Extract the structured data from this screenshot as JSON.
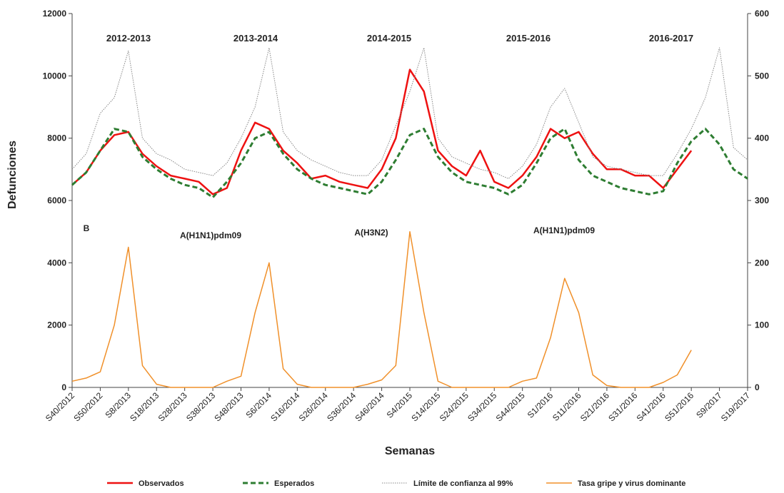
{
  "chart_data": {
    "type": "line",
    "y_label": "Defunciones",
    "x_label": "Semanas",
    "categories": [
      "S40/2012",
      null,
      "S50/2012",
      null,
      "S8/2013",
      null,
      "S18/2013",
      null,
      "S28/2013",
      null,
      "S38/2013",
      null,
      "S48/2013",
      null,
      "S6/2014",
      null,
      "S16/2014",
      null,
      "S26/2014",
      null,
      "S36/2014",
      null,
      "S46/2014",
      null,
      "S4/2015",
      null,
      "S14/2015",
      null,
      "S24/2015",
      null,
      "S34/2015",
      null,
      "S44/2015",
      null,
      "S1/2016",
      null,
      "S11/2016",
      null,
      "S21/2016",
      null,
      "S31/2016",
      null,
      "S41/2016",
      null,
      "S51/2016",
      null,
      "S9/2017",
      null,
      "S19/2017"
    ],
    "ylim": [
      0,
      12000
    ],
    "yticks": [
      0,
      2000,
      4000,
      6000,
      8000,
      10000,
      12000
    ],
    "y2lim": [
      0,
      600
    ],
    "y2ticks": [
      0,
      100,
      200,
      300,
      400,
      500,
      600
    ],
    "season_labels": [
      "2012-2013",
      "2013-2014",
      "2014-2015",
      "2015-2016",
      "2016-2017"
    ],
    "virus_labels": [
      "B",
      "A(H1N1)pdm09",
      "A(H3N2)",
      "A(H1N1)pdm09"
    ],
    "series": [
      {
        "name": "Observados",
        "color": "#ee1111",
        "style": "solid",
        "width": 2.5,
        "values": [
          6500,
          6900,
          7600,
          8100,
          8200,
          7500,
          7100,
          6800,
          6700,
          6600,
          6200,
          6400,
          7600,
          8500,
          8300,
          7600,
          7200,
          6700,
          6800,
          6600,
          6500,
          6400,
          7000,
          8000,
          10200,
          9500,
          7600,
          7100,
          6800,
          7600,
          6600,
          6400,
          6800,
          7400,
          8300,
          8000,
          8200,
          7500,
          7000,
          7000,
          6800,
          6800,
          6400,
          7000,
          7600,
          null,
          null,
          null,
          null
        ]
      },
      {
        "name": "Esperados",
        "color": "#2e7d32",
        "style": "dash",
        "width": 3,
        "values": [
          6500,
          6900,
          7600,
          8300,
          8200,
          7400,
          7000,
          6700,
          6500,
          6400,
          6100,
          6600,
          7200,
          8000,
          8200,
          7500,
          7000,
          6700,
          6500,
          6400,
          6300,
          6200,
          6600,
          7300,
          8100,
          8300,
          7400,
          6900,
          6600,
          6500,
          6400,
          6200,
          6500,
          7200,
          8000,
          8300,
          7300,
          6800,
          6600,
          6400,
          6300,
          6200,
          6300,
          7200,
          7900,
          8300,
          7800,
          7000,
          6700
        ]
      },
      {
        "name": "Límite de confianza al 99%",
        "color": "#888888",
        "style": "dot",
        "width": 1,
        "values": [
          7000,
          7500,
          8800,
          9300,
          10800,
          8000,
          7500,
          7300,
          7000,
          6900,
          6800,
          7200,
          8000,
          9000,
          10900,
          8200,
          7600,
          7300,
          7100,
          6900,
          6800,
          6800,
          7300,
          8400,
          9500,
          10900,
          8000,
          7400,
          7200,
          7000,
          6900,
          6700,
          7100,
          7800,
          9000,
          9600,
          8500,
          7400,
          7100,
          7000,
          6900,
          6800,
          6800,
          7500,
          8300,
          9300,
          10900,
          7700,
          7300
        ]
      },
      {
        "name": "Tasa gripe y virus dominante",
        "color": "#f0902a",
        "style": "solid",
        "width": 1.5,
        "axis": "y2",
        "values": [
          10,
          15,
          25,
          100,
          225,
          35,
          5,
          0,
          0,
          0,
          0,
          10,
          18,
          120,
          200,
          30,
          5,
          0,
          0,
          0,
          0,
          5,
          12,
          35,
          250,
          120,
          10,
          0,
          0,
          0,
          0,
          0,
          10,
          15,
          80,
          175,
          120,
          20,
          3,
          0,
          0,
          0,
          8,
          20,
          60,
          null,
          null,
          null,
          null
        ]
      }
    ]
  }
}
